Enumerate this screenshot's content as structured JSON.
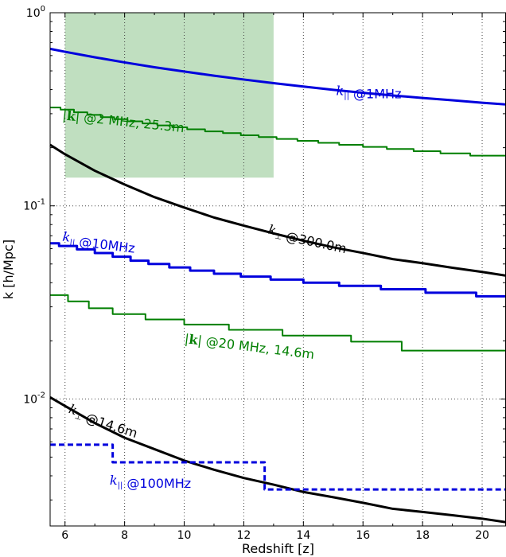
{
  "chart_data": {
    "type": "line",
    "xlabel": "Redshift [z]",
    "ylabel": "k [h/Mpc]",
    "xlim": [
      5.5,
      20.8
    ],
    "ylim": [
      0.0022,
      1.0
    ],
    "yscale": "log",
    "grid": true,
    "x_ticks": [
      6,
      8,
      10,
      12,
      14,
      16,
      18,
      20
    ],
    "x_tick_labels": [
      "6",
      "8",
      "10",
      "12",
      "14",
      "16",
      "18",
      "20"
    ],
    "y_ticks": [
      {
        "value": 1.0,
        "base": "10",
        "exp": "0"
      },
      {
        "value": 0.1,
        "base": "10",
        "exp": "-1"
      },
      {
        "value": 0.01,
        "base": "10",
        "exp": "-2"
      }
    ],
    "shaded_region": {
      "x": [
        6,
        13
      ],
      "y": [
        0.14,
        1.0
      ],
      "color": "#c0dfc0"
    },
    "series": [
      {
        "style": "smooth",
        "color": "#0000dd",
        "width": 3,
        "dash": "",
        "x": [
          5.5,
          6,
          7,
          8,
          9,
          10,
          11,
          12,
          13,
          14,
          15,
          16,
          17,
          18,
          19,
          20,
          20.8
        ],
        "y": [
          0.65,
          0.628,
          0.588,
          0.553,
          0.522,
          0.496,
          0.472,
          0.451,
          0.432,
          0.415,
          0.399,
          0.385,
          0.373,
          0.362,
          0.352,
          0.342,
          0.335
        ]
      },
      {
        "style": "step",
        "color": "#007f00",
        "width": 2,
        "dash": "",
        "x": [
          5.5,
          5.85,
          6.3,
          6.75,
          7.2,
          7.65,
          8.1,
          8.6,
          9.1,
          9.6,
          10.1,
          10.7,
          11.3,
          11.9,
          12.5,
          13.1,
          13.8,
          14.5,
          15.2,
          16.0,
          16.8,
          17.7,
          18.6,
          19.6,
          20.8
        ],
        "y": [
          0.323,
          0.315,
          0.305,
          0.296,
          0.288,
          0.281,
          0.274,
          0.267,
          0.261,
          0.255,
          0.249,
          0.243,
          0.238,
          0.232,
          0.227,
          0.222,
          0.217,
          0.212,
          0.207,
          0.202,
          0.197,
          0.192,
          0.187,
          0.182,
          0.177
        ]
      },
      {
        "style": "smooth",
        "color": "#000000",
        "width": 3,
        "dash": "",
        "x": [
          5.5,
          6,
          7,
          8,
          9,
          10,
          11,
          12,
          13,
          14,
          15,
          16,
          17,
          18,
          19,
          20,
          20.8
        ],
        "y": [
          0.207,
          0.185,
          0.152,
          0.129,
          0.111,
          0.098,
          0.087,
          0.079,
          0.072,
          0.066,
          0.061,
          0.057,
          0.053,
          0.0505,
          0.0478,
          0.0455,
          0.0435
        ]
      },
      {
        "style": "step",
        "color": "#0000dd",
        "width": 3,
        "dash": "",
        "x": [
          5.5,
          5.8,
          6.4,
          7.0,
          7.6,
          8.2,
          8.8,
          9.5,
          10.2,
          11.0,
          11.9,
          12.9,
          14.0,
          15.2,
          16.6,
          18.1,
          19.8,
          20.8
        ],
        "y": [
          0.064,
          0.062,
          0.0595,
          0.057,
          0.0545,
          0.052,
          0.05,
          0.048,
          0.0462,
          0.0445,
          0.043,
          0.0415,
          0.04,
          0.0385,
          0.037,
          0.0355,
          0.034,
          0.034
        ]
      },
      {
        "style": "step",
        "color": "#007f00",
        "width": 2,
        "dash": "",
        "x": [
          5.5,
          6.1,
          6.8,
          7.6,
          8.7,
          10.0,
          11.5,
          13.3,
          15.6,
          17.3,
          20.8
        ],
        "y": [
          0.0345,
          0.032,
          0.0295,
          0.0275,
          0.0258,
          0.0243,
          0.0228,
          0.0213,
          0.0198,
          0.0178,
          0.0178
        ]
      },
      {
        "style": "smooth",
        "color": "#000000",
        "width": 3,
        "dash": "",
        "x": [
          5.5,
          6,
          7,
          8,
          9,
          10,
          11,
          12,
          13,
          14,
          15,
          16,
          17,
          18,
          19,
          20,
          20.8
        ],
        "y": [
          0.0102,
          0.0092,
          0.0075,
          0.0063,
          0.0055,
          0.0048,
          0.0043,
          0.0039,
          0.0036,
          0.0033,
          0.0031,
          0.0029,
          0.0027,
          0.0026,
          0.0025,
          0.0024,
          0.0023
        ]
      },
      {
        "style": "step",
        "color": "#0000dd",
        "width": 3,
        "dash": "7,4",
        "x": [
          5.5,
          7.6,
          12.7,
          20.8
        ],
        "y": [
          0.0058,
          0.0047,
          0.0034,
          0.0034
        ]
      }
    ],
    "annotations": [
      {
        "parts": [
          {
            "t": "k",
            "i": true
          },
          {
            "t": "||",
            "sub": true
          },
          {
            "t": " @1MHz"
          }
        ],
        "x": 15.1,
        "y": 0.375,
        "rotation": 0,
        "color": "#0000dd"
      },
      {
        "parts": [
          {
            "t": "|"
          },
          {
            "t": "k",
            "b": true
          },
          {
            "t": "| @2 MHz, 25.3m"
          }
        ],
        "x": 5.9,
        "y": 0.28,
        "rotation": 6,
        "color": "#007f00"
      },
      {
        "parts": [
          {
            "t": "k",
            "i": true
          },
          {
            "t": "⊥",
            "sub": true
          },
          {
            "t": " @300.0m"
          }
        ],
        "x": 12.8,
        "y": 0.072,
        "rotation": 12,
        "color": "#000000"
      },
      {
        "parts": [
          {
            "t": "k",
            "i": true
          },
          {
            "t": "||",
            "sub": true
          },
          {
            "t": " @10MHz"
          }
        ],
        "x": 5.9,
        "y": 0.066,
        "rotation": 7,
        "color": "#0000dd"
      },
      {
        "parts": [
          {
            "t": "|"
          },
          {
            "t": "k",
            "b": true
          },
          {
            "t": "| @20 MHz, 14.6m"
          }
        ],
        "x": 10.0,
        "y": 0.0195,
        "rotation": 7,
        "color": "#007f00"
      },
      {
        "parts": [
          {
            "t": "k",
            "i": true
          },
          {
            "t": "⊥",
            "sub": true
          },
          {
            "t": " @14.6m"
          }
        ],
        "x": 6.1,
        "y": 0.0085,
        "rotation": 18,
        "color": "#000000"
      },
      {
        "parts": [
          {
            "t": "k",
            "i": true
          },
          {
            "t": "||",
            "sub": true
          },
          {
            "t": " @100MHz"
          }
        ],
        "x": 7.5,
        "y": 0.0036,
        "rotation": 0,
        "color": "#0000dd"
      }
    ]
  }
}
